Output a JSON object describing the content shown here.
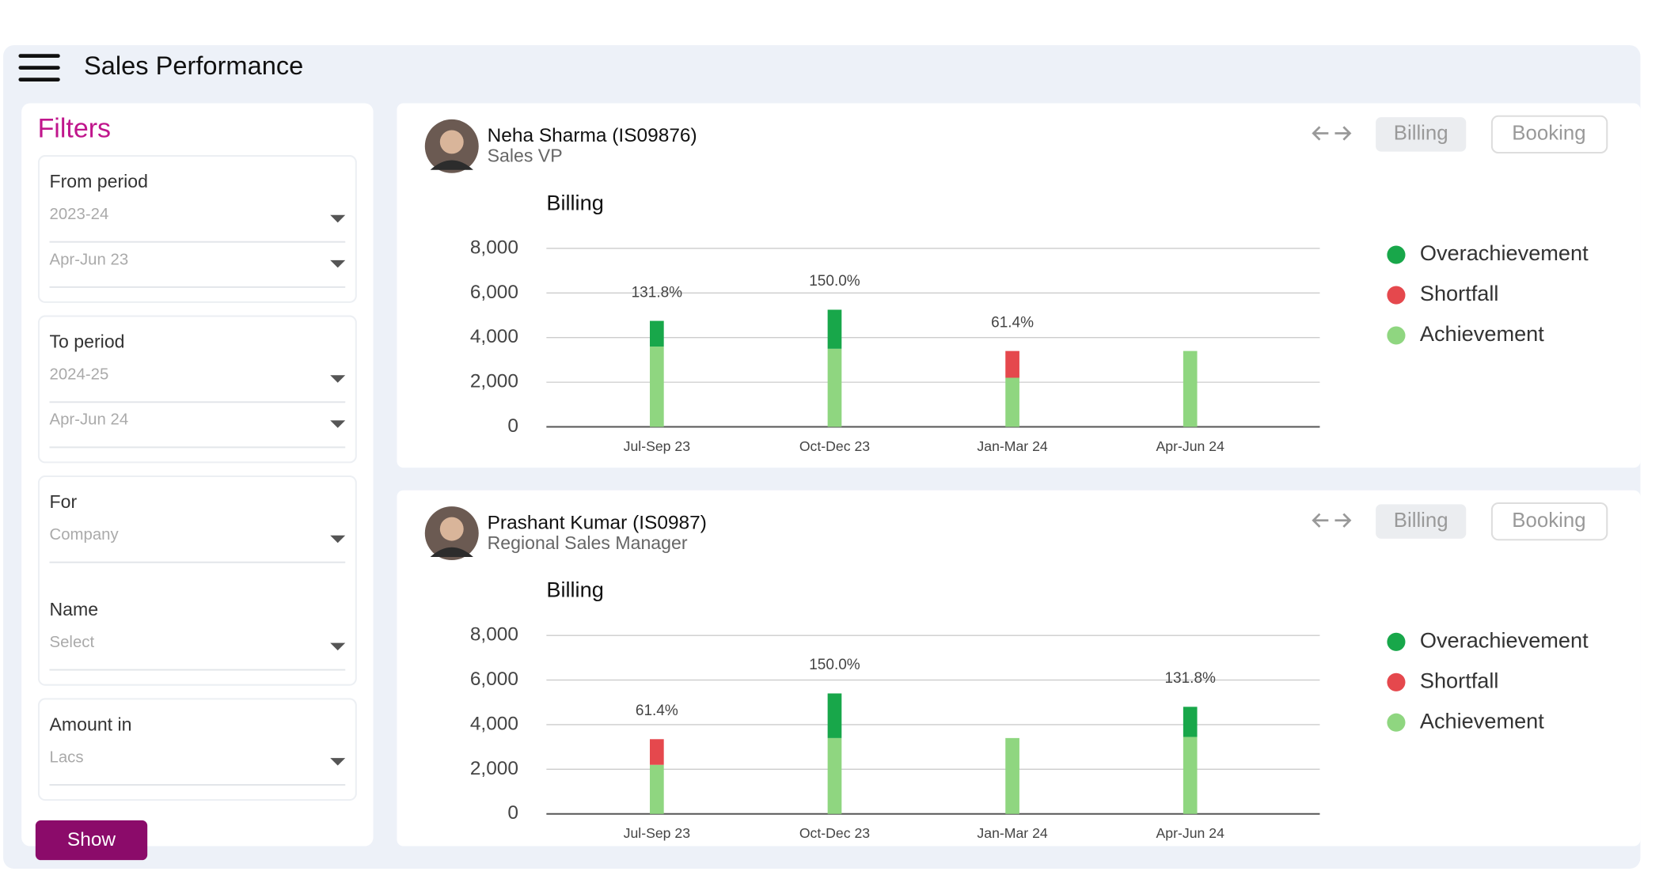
{
  "header": {
    "title": "Sales Performance"
  },
  "filters": {
    "title": "Filters",
    "boxes": [
      [
        {
          "label": "From period",
          "options": [
            "2023-24",
            "Apr-Jun 23"
          ]
        }
      ],
      [
        {
          "label": "To period",
          "options": [
            "2024-25",
            "Apr-Jun 24"
          ]
        }
      ],
      [
        {
          "label": "For",
          "options": [
            "Company"
          ]
        },
        {
          "label": "Name",
          "options": [
            "Select"
          ]
        }
      ],
      [
        {
          "label": "Amount in",
          "options": [
            "Lacs"
          ]
        }
      ]
    ],
    "button": "Show"
  },
  "panels": [
    {
      "name": "Neha Sharma (IS09876)",
      "role": "Sales VP",
      "buttons": [
        "Billing",
        "Booking"
      ],
      "chart": {
        "type": "bar",
        "stacked": true,
        "title": "Billing",
        "categories": [
          "Jul-Sep 23",
          "Oct-Dec 23",
          "Jan-Mar 24",
          "Apr-Jun 24"
        ],
        "series": [
          {
            "name": "Overachievement",
            "color": "#18a74a",
            "values": [
              1150,
              1750,
              null,
              null
            ]
          },
          {
            "name": "Shortfall",
            "color": "#e5484d",
            "values": [
              null,
              null,
              1200,
              null
            ]
          },
          {
            "name": "Achievement",
            "color": "#8fd680",
            "values": [
              3600,
              3500,
              2200,
              3400
            ]
          }
        ],
        "percent_labels": [
          "131.8%",
          "150.0%",
          "61.4%",
          null
        ],
        "ylim": [
          0,
          8000
        ],
        "yticks": [
          0,
          {
            "value": 2000,
            "label": "2,000"
          },
          {
            "value": 4000,
            "label": "4,000"
          },
          {
            "value": 6000,
            "label": "6,000"
          },
          {
            "value": 8000,
            "label": "8,000"
          }
        ],
        "grid": true
      }
    },
    {
      "name": "Prashant Kumar (IS0987)",
      "role": "Regional Sales Manager",
      "buttons": [
        "Billing",
        "Booking"
      ],
      "chart": {
        "type": "bar",
        "stacked": true,
        "title": "Billing",
        "categories": [
          "Jul-Sep 23",
          "Oct-Dec 23",
          "Jan-Mar 24",
          "Apr-Jun 24"
        ],
        "series": [
          {
            "name": "Overachievement",
            "color": "#18a74a",
            "values": [
              null,
              2000,
              null,
              1350
            ]
          },
          {
            "name": "Shortfall",
            "color": "#e5484d",
            "values": [
              1150,
              null,
              null,
              null
            ]
          },
          {
            "name": "Achievement",
            "color": "#8fd680",
            "values": [
              2200,
              3400,
              3400,
              3450
            ]
          }
        ],
        "percent_labels": [
          "61.4%",
          "150.0%",
          null,
          "131.8%"
        ],
        "ylim": [
          0,
          8000
        ],
        "yticks": [
          0,
          {
            "value": 2000,
            "label": "2,000"
          },
          {
            "value": 4000,
            "label": "4,000"
          },
          {
            "value": 6000,
            "label": "6,000"
          },
          {
            "value": 8000,
            "label": "8,000"
          }
        ],
        "grid": true
      }
    }
  ]
}
